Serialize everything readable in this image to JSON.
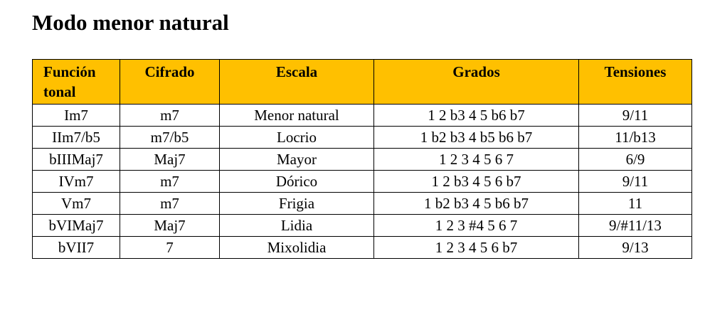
{
  "header": {
    "title": "Modo menor natural"
  },
  "table": {
    "columns": [
      "Función tonal",
      "Cifrado",
      "Escala",
      "Grados",
      "Tensiones"
    ],
    "rows": [
      [
        "Im7",
        "m7",
        "Menor natural",
        "1 2 b3 4 5 b6 b7",
        "9/11"
      ],
      [
        "IIm7/b5",
        "m7/b5",
        "Locrio",
        "1 b2 b3 4 b5 b6 b7",
        "11/b13"
      ],
      [
        "bIIIMaj7",
        "Maj7",
        "Mayor",
        "1 2 3 4 5 6 7",
        "6/9"
      ],
      [
        "IVm7",
        "m7",
        "Dórico",
        "1 2 b3 4 5 6 b7",
        "9/11"
      ],
      [
        "Vm7",
        "m7",
        "Frigia",
        "1 b2 b3 4 5 b6 b7",
        "11"
      ],
      [
        "bVIMaj7",
        "Maj7",
        "Lidia",
        "1 2 3 #4 5 6 7",
        "9/#11/13"
      ],
      [
        "bVII7",
        "7",
        "Mixolidia",
        "1 2 3 4 5 6 b7",
        "9/13"
      ]
    ]
  }
}
